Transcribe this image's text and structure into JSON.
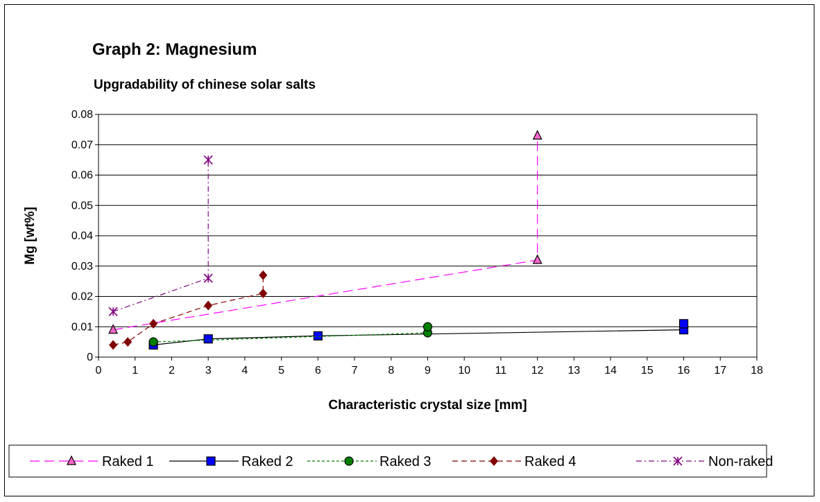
{
  "chart_data": {
    "type": "scatter",
    "title": "Graph 2: Magnesium",
    "subtitle": "Upgradability of chinese solar salts",
    "xlabel": "Characteristic crystal size [mm]",
    "ylabel": "Mg [wt%]",
    "xlim": [
      0,
      18
    ],
    "ylim": [
      0,
      0.08
    ],
    "x_ticks": [
      "0",
      "1",
      "2",
      "3",
      "4",
      "5",
      "6",
      "7",
      "8",
      "9",
      "10",
      "11",
      "12",
      "13",
      "14",
      "15",
      "16",
      "17",
      "18"
    ],
    "y_ticks": [
      "0",
      "0.01",
      "0.02",
      "0.03",
      "0.04",
      "0.05",
      "0.06",
      "0.07",
      "0.08"
    ],
    "grid": "horizontal",
    "legend_position": "bottom",
    "series": [
      {
        "name": "Raked 1",
        "color": "#ff00ff",
        "marker": "triangle",
        "marker_fill": "#ff66cc",
        "dash": "long-dash",
        "points": [
          [
            0.4,
            0.009
          ],
          [
            12,
            0.032
          ],
          [
            12,
            0.073
          ]
        ]
      },
      {
        "name": "Raked 2",
        "color": "#000000",
        "marker": "square",
        "marker_fill": "#0000ff",
        "dash": "solid",
        "points": [
          [
            1.5,
            0.004
          ],
          [
            3,
            0.006
          ],
          [
            6,
            0.007
          ],
          [
            16,
            0.009
          ],
          [
            16,
            0.011
          ]
        ]
      },
      {
        "name": "Raked 3",
        "color": "#008000",
        "marker": "circle",
        "marker_fill": "#008000",
        "dash": "short-dash",
        "points": [
          [
            1.5,
            0.005
          ],
          [
            9,
            0.008
          ],
          [
            9,
            0.01
          ]
        ]
      },
      {
        "name": "Raked 4",
        "color": "#800000",
        "marker": "diamond",
        "marker_fill": "#800000",
        "dash": "medium-dash",
        "points": [
          [
            0.4,
            0.004
          ],
          [
            0.8,
            0.005
          ],
          [
            1.5,
            0.011
          ],
          [
            3,
            0.017
          ],
          [
            4.5,
            0.021
          ],
          [
            4.5,
            0.027
          ]
        ]
      },
      {
        "name": "Non-raked",
        "color": "#800080",
        "marker": "star",
        "marker_fill": "#800080",
        "dash": "dash-dot",
        "points": [
          [
            0.4,
            0.015
          ],
          [
            3,
            0.026
          ],
          [
            3,
            0.065
          ]
        ]
      }
    ]
  }
}
